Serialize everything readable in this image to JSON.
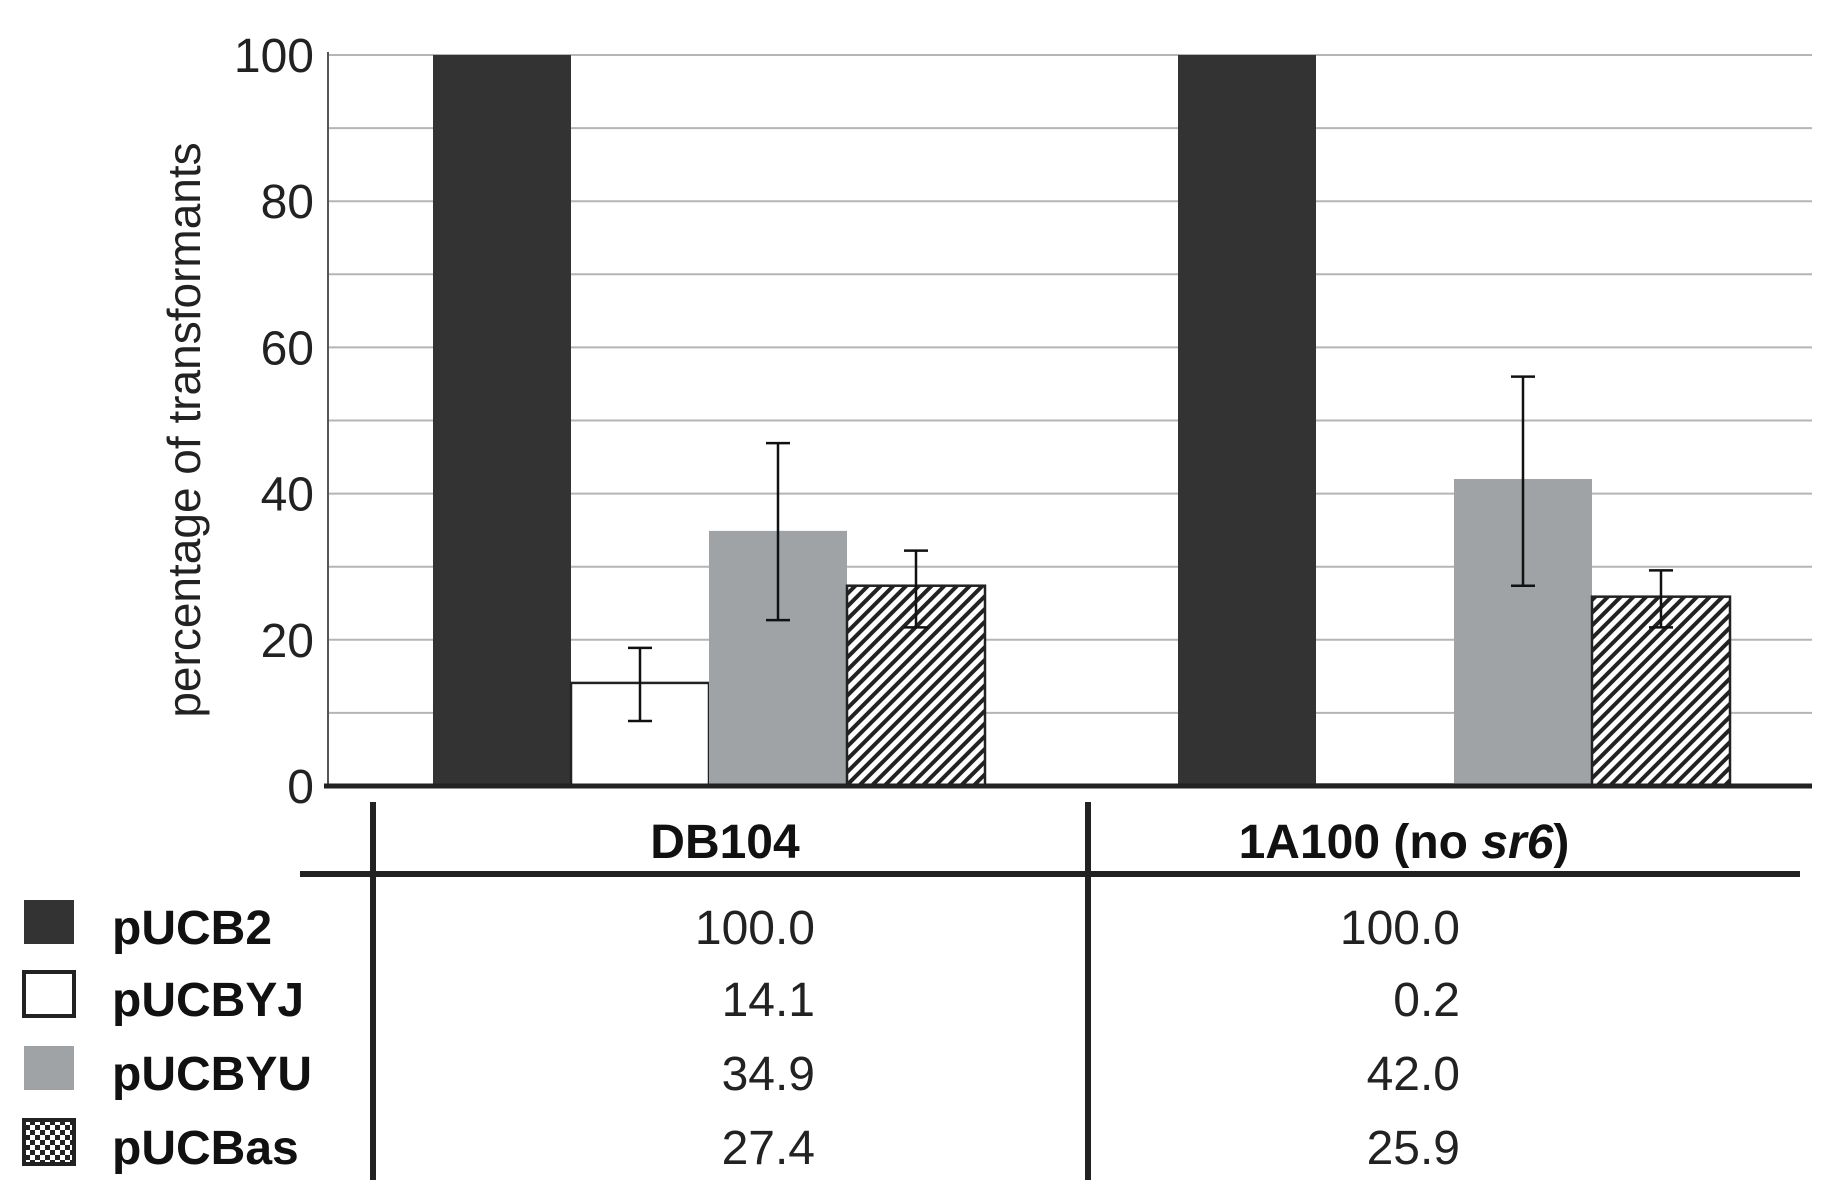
{
  "chart_data": {
    "type": "bar",
    "ylabel": "percentage of transformants",
    "ylim": [
      0,
      100
    ],
    "yticks": [
      "0",
      "20",
      "40",
      "60",
      "80",
      "100"
    ],
    "grid": true,
    "categories": [
      {
        "label": "DB104"
      },
      {
        "label_pre": "1A100 (no ",
        "label_em": "sr6",
        "label_post": ")"
      }
    ],
    "series": [
      {
        "name": "pUCB2",
        "color": "#333333",
        "pattern": "solid",
        "values": [
          100.0,
          100.0
        ],
        "table_values": [
          "100.0",
          "100.0"
        ],
        "errors": [
          null,
          null
        ]
      },
      {
        "name": "pUCBYJ",
        "color": "#ffffff",
        "pattern": "outline",
        "values": [
          14.1,
          0.2
        ],
        "table_values": [
          "14.1",
          "0.2"
        ],
        "errors": [
          [
            8.9,
            18.9
          ],
          null
        ]
      },
      {
        "name": "pUCBYU",
        "color": "#a0a3a5",
        "pattern": "solid",
        "values": [
          34.9,
          42.0
        ],
        "table_values": [
          "34.9",
          "42.0"
        ],
        "errors": [
          [
            22.7,
            46.9
          ],
          [
            27.4,
            56.0
          ]
        ]
      },
      {
        "name": "pUCBas",
        "color": "#ffffff",
        "pattern": "hatch",
        "values": [
          27.4,
          25.9
        ],
        "table_values": [
          "27.4",
          "25.9"
        ],
        "errors": [
          [
            21.7,
            32.2
          ],
          [
            21.7,
            29.5
          ]
        ]
      }
    ]
  }
}
